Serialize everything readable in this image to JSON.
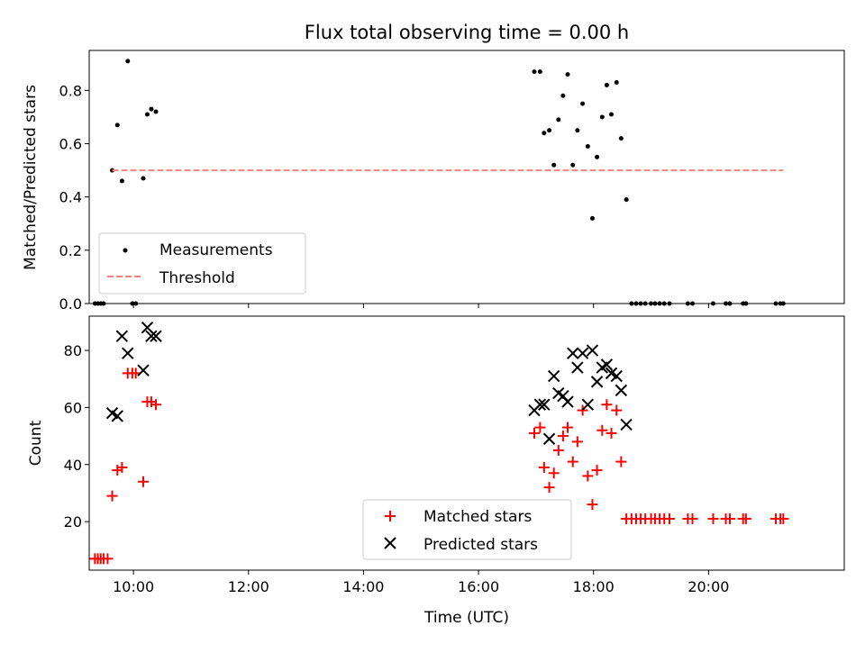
{
  "chart_data": [
    {
      "type": "scatter",
      "title": "Flux total observing time = 0.00 h",
      "xlabel": "",
      "ylabel": "Matched/Predicted stars",
      "xlim": [
        9.23,
        22.36
      ],
      "ylim": [
        0,
        0.95
      ],
      "yticks": [
        0.0,
        0.2,
        0.4,
        0.6,
        0.8
      ],
      "yticklabels": [
        "0.0",
        "0.2",
        "0.4",
        "0.6",
        "0.8"
      ],
      "grid": false,
      "legend_position": "lower-left",
      "series": [
        {
          "name": "Measurements",
          "color": "#000000",
          "marker": "dot",
          "points": [
            [
              9.33,
              0.0
            ],
            [
              9.38,
              0.0
            ],
            [
              9.43,
              0.0
            ],
            [
              9.48,
              0.0
            ],
            [
              9.63,
              0.5
            ],
            [
              9.72,
              0.67
            ],
            [
              9.8,
              0.46
            ],
            [
              9.9,
              0.91
            ],
            [
              9.98,
              0.0
            ],
            [
              10.04,
              0.0
            ],
            [
              10.17,
              0.47
            ],
            [
              10.24,
              0.71
            ],
            [
              10.31,
              0.73
            ],
            [
              10.39,
              0.72
            ],
            [
              16.97,
              0.87
            ],
            [
              17.07,
              0.87
            ],
            [
              17.14,
              0.64
            ],
            [
              17.23,
              0.65
            ],
            [
              17.31,
              0.52
            ],
            [
              17.39,
              0.69
            ],
            [
              17.47,
              0.78
            ],
            [
              17.55,
              0.86
            ],
            [
              17.64,
              0.52
            ],
            [
              17.72,
              0.65
            ],
            [
              17.81,
              0.75
            ],
            [
              17.9,
              0.59
            ],
            [
              17.98,
              0.32
            ],
            [
              18.06,
              0.55
            ],
            [
              18.15,
              0.7
            ],
            [
              18.23,
              0.82
            ],
            [
              18.31,
              0.71
            ],
            [
              18.4,
              0.83
            ],
            [
              18.48,
              0.62
            ],
            [
              18.57,
              0.39
            ],
            [
              18.66,
              0.0
            ],
            [
              18.74,
              0.0
            ],
            [
              18.82,
              0.0
            ],
            [
              18.9,
              0.0
            ],
            [
              19.0,
              0.0
            ],
            [
              19.07,
              0.0
            ],
            [
              19.15,
              0.0
            ],
            [
              19.23,
              0.0
            ],
            [
              19.32,
              0.0
            ],
            [
              19.64,
              0.0
            ],
            [
              19.72,
              0.0
            ],
            [
              20.08,
              0.0
            ],
            [
              20.3,
              0.0
            ],
            [
              20.37,
              0.0
            ],
            [
              20.6,
              0.0
            ],
            [
              20.65,
              0.0
            ],
            [
              21.17,
              0.0
            ],
            [
              21.25,
              0.0
            ],
            [
              21.3,
              0.0
            ]
          ]
        },
        {
          "name": "Threshold",
          "color": "#ff7f7f",
          "linestyle": "dashed",
          "points": [
            [
              9.63,
              0.5
            ],
            [
              21.3,
              0.5
            ]
          ]
        }
      ]
    },
    {
      "type": "scatter",
      "title": "",
      "xlabel": "Time (UTC)",
      "ylabel": "Count",
      "xlim": [
        9.23,
        22.36
      ],
      "ylim": [
        3,
        92
      ],
      "xticks": [
        10,
        12,
        14,
        16,
        18,
        20
      ],
      "xticklabels": [
        "10:00",
        "12:00",
        "14:00",
        "16:00",
        "18:00",
        "20:00"
      ],
      "yticks": [
        20,
        40,
        60,
        80
      ],
      "yticklabels": [
        "20",
        "40",
        "60",
        "80"
      ],
      "grid": false,
      "legend_position": "lower-center",
      "series": [
        {
          "name": "Matched stars",
          "color": "#ff0000",
          "marker": "plus",
          "points": [
            [
              9.33,
              7
            ],
            [
              9.38,
              7
            ],
            [
              9.43,
              7
            ],
            [
              9.48,
              7
            ],
            [
              9.55,
              7
            ],
            [
              9.63,
              29
            ],
            [
              9.72,
              38
            ],
            [
              9.8,
              39
            ],
            [
              9.9,
              72
            ],
            [
              9.98,
              72
            ],
            [
              10.04,
              72
            ],
            [
              10.17,
              34
            ],
            [
              10.24,
              62
            ],
            [
              10.31,
              62
            ],
            [
              10.39,
              61
            ],
            [
              16.97,
              51
            ],
            [
              17.07,
              53
            ],
            [
              17.14,
              39
            ],
            [
              17.23,
              32
            ],
            [
              17.31,
              37
            ],
            [
              17.39,
              45
            ],
            [
              17.47,
              50
            ],
            [
              17.55,
              53
            ],
            [
              17.64,
              41
            ],
            [
              17.72,
              48
            ],
            [
              17.81,
              59
            ],
            [
              17.9,
              36
            ],
            [
              17.98,
              26
            ],
            [
              18.06,
              38
            ],
            [
              18.15,
              52
            ],
            [
              18.23,
              61
            ],
            [
              18.31,
              51
            ],
            [
              18.4,
              59
            ],
            [
              18.48,
              41
            ],
            [
              18.57,
              21
            ],
            [
              18.66,
              21
            ],
            [
              18.74,
              21
            ],
            [
              18.82,
              21
            ],
            [
              18.9,
              21
            ],
            [
              19.0,
              21
            ],
            [
              19.07,
              21
            ],
            [
              19.15,
              21
            ],
            [
              19.23,
              21
            ],
            [
              19.32,
              21
            ],
            [
              19.64,
              21
            ],
            [
              19.72,
              21
            ],
            [
              20.08,
              21
            ],
            [
              20.3,
              21
            ],
            [
              20.37,
              21
            ],
            [
              20.6,
              21
            ],
            [
              20.65,
              21
            ],
            [
              21.17,
              21
            ],
            [
              21.25,
              21
            ],
            [
              21.3,
              21
            ]
          ]
        },
        {
          "name": "Predicted stars",
          "color": "#000000",
          "marker": "x",
          "points": [
            [
              9.63,
              58
            ],
            [
              9.72,
              57
            ],
            [
              9.8,
              85
            ],
            [
              9.9,
              79
            ],
            [
              10.17,
              73
            ],
            [
              10.24,
              88
            ],
            [
              10.31,
              85
            ],
            [
              10.39,
              85
            ],
            [
              16.97,
              59
            ],
            [
              17.07,
              61
            ],
            [
              17.14,
              61
            ],
            [
              17.23,
              49
            ],
            [
              17.31,
              71
            ],
            [
              17.39,
              65
            ],
            [
              17.47,
              64
            ],
            [
              17.55,
              62
            ],
            [
              17.64,
              79
            ],
            [
              17.72,
              74
            ],
            [
              17.81,
              79
            ],
            [
              17.9,
              61
            ],
            [
              17.98,
              80
            ],
            [
              18.06,
              69
            ],
            [
              18.15,
              74
            ],
            [
              18.23,
              75
            ],
            [
              18.31,
              72
            ],
            [
              18.4,
              71
            ],
            [
              18.48,
              66
            ],
            [
              18.57,
              54
            ]
          ]
        }
      ]
    }
  ]
}
